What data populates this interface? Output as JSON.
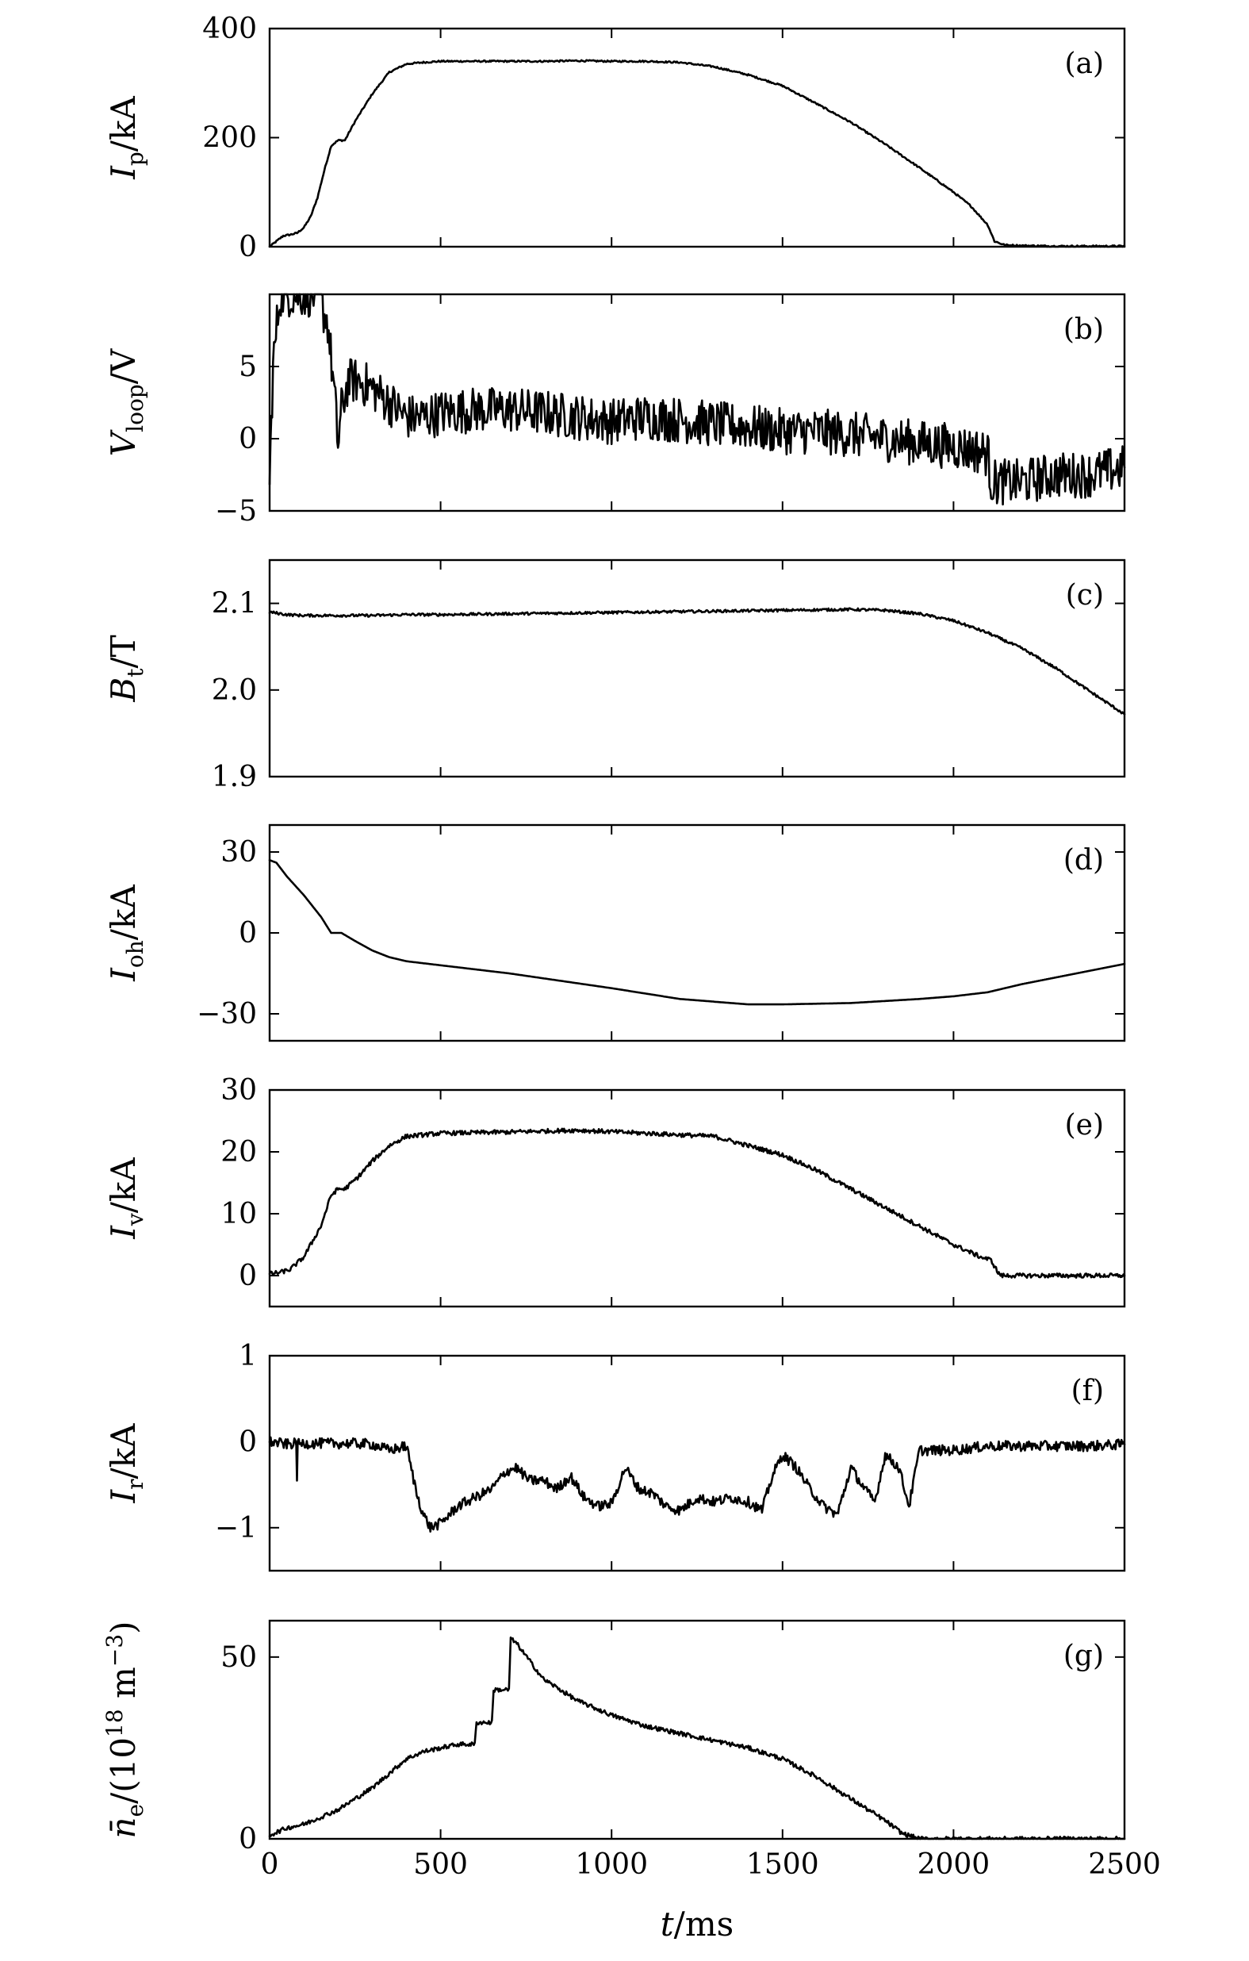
{
  "chart_data": [
    {
      "type": "line",
      "panel_tag": "(a)",
      "ylabel": {
        "symbol": "I",
        "sub": "p",
        "unit": "/kA"
      },
      "xlim": [
        0,
        2500
      ],
      "ylim": [
        0,
        400
      ],
      "yticks": [
        0,
        200,
        400
      ],
      "yticklabels": [
        "0",
        "200",
        "400"
      ],
      "x": [
        0,
        20,
        40,
        60,
        80,
        100,
        120,
        140,
        160,
        180,
        200,
        220,
        250,
        300,
        350,
        400,
        450,
        500,
        600,
        700,
        800,
        900,
        1000,
        1100,
        1200,
        1300,
        1400,
        1500,
        1600,
        1700,
        1800,
        1900,
        2000,
        2050,
        2100,
        2120,
        2150,
        2200,
        2300,
        2400,
        2500
      ],
      "y": [
        0,
        10,
        20,
        22,
        25,
        35,
        55,
        90,
        140,
        185,
        195,
        195,
        230,
        280,
        320,
        335,
        338,
        340,
        340,
        340,
        340,
        341,
        340,
        340,
        338,
        330,
        315,
        295,
        262,
        228,
        188,
        145,
        100,
        75,
        40,
        10,
        3,
        2,
        1,
        1,
        1
      ],
      "noise": 1.5
    },
    {
      "type": "line",
      "panel_tag": "(b)",
      "ylabel": {
        "symbol": "V",
        "sub": "loop",
        "unit": "/V"
      },
      "xlim": [
        0,
        2500
      ],
      "ylim": [
        -5,
        10
      ],
      "yticks": [
        -5,
        0,
        5
      ],
      "yticklabels": [
        "−5",
        "0",
        "5"
      ],
      "x": [
        0,
        10,
        30,
        60,
        100,
        140,
        170,
        190,
        200,
        210,
        230,
        260,
        300,
        350,
        400,
        450,
        500,
        600,
        700,
        800,
        900,
        1000,
        1100,
        1200,
        1300,
        1400,
        1500,
        1600,
        1700,
        1800,
        1900,
        2000,
        2100,
        2110,
        2150,
        2200,
        2300,
        2400,
        2500
      ],
      "y": [
        -3,
        5,
        10,
        10,
        10,
        10,
        8,
        3,
        -0.5,
        2,
        4,
        4,
        3.5,
        2.5,
        1.5,
        1.5,
        1.8,
        2,
        2,
        1.8,
        1.5,
        1.2,
        1.5,
        1.3,
        1,
        0.8,
        0.5,
        0.5,
        0.3,
        0,
        -0.3,
        -0.5,
        -1,
        -3,
        -3,
        -3,
        -2.5,
        -2.5,
        -2
      ],
      "noise": 1.6
    },
    {
      "type": "line",
      "panel_tag": "(c)",
      "ylabel": {
        "symbol": "B",
        "sub": "t",
        "unit": "/T"
      },
      "xlim": [
        0,
        2500
      ],
      "ylim": [
        1.9,
        2.15
      ],
      "yticks": [
        1.9,
        2.0,
        2.1
      ],
      "yticklabels": [
        "1.9",
        "2.0",
        "2.1"
      ],
      "x": [
        0,
        50,
        100,
        200,
        300,
        400,
        500,
        700,
        900,
        1100,
        1300,
        1500,
        1700,
        1800,
        1900,
        2000,
        2100,
        2200,
        2300,
        2400,
        2500
      ],
      "y": [
        2.09,
        2.087,
        2.086,
        2.086,
        2.086,
        2.087,
        2.087,
        2.088,
        2.089,
        2.09,
        2.091,
        2.092,
        2.093,
        2.092,
        2.088,
        2.08,
        2.066,
        2.048,
        2.025,
        1.998,
        1.972
      ],
      "noise": 0.0015
    },
    {
      "type": "line",
      "panel_tag": "(d)",
      "ylabel": {
        "symbol": "I",
        "sub": "oh",
        "unit": "/kA"
      },
      "xlim": [
        0,
        2500
      ],
      "ylim": [
        -40,
        40
      ],
      "yticks": [
        -30,
        0,
        30
      ],
      "yticklabels": [
        "−30",
        "0",
        "30"
      ],
      "x": [
        0,
        20,
        50,
        100,
        150,
        180,
        210,
        250,
        300,
        350,
        400,
        500,
        700,
        1000,
        1200,
        1400,
        1500,
        1700,
        1900,
        2000,
        2100,
        2200,
        2300,
        2400,
        2500
      ],
      "y": [
        27,
        26,
        21,
        14,
        6,
        0,
        0,
        -3,
        -6.5,
        -9,
        -10.5,
        -12,
        -15,
        -20.5,
        -24.5,
        -26.5,
        -26.5,
        -26,
        -24.5,
        -23.5,
        -22,
        -19,
        -16.5,
        -14,
        -11.5
      ],
      "noise": 0
    },
    {
      "type": "line",
      "panel_tag": "(e)",
      "ylabel": {
        "symbol": "I",
        "sub": "v",
        "unit": "/kA"
      },
      "xlim": [
        0,
        2500
      ],
      "ylim": [
        -5,
        30
      ],
      "yticks": [
        0,
        10,
        20,
        30
      ],
      "yticklabels": [
        "0",
        "10",
        "20",
        "30"
      ],
      "x": [
        0,
        30,
        60,
        100,
        150,
        180,
        200,
        220,
        260,
        300,
        350,
        400,
        500,
        700,
        900,
        1100,
        1300,
        1400,
        1500,
        1600,
        1700,
        1800,
        1900,
        2000,
        2080,
        2110,
        2130,
        2140,
        2200,
        2300,
        2400,
        2500
      ],
      "y": [
        0.3,
        0.5,
        1,
        3,
        8,
        13,
        14,
        14,
        16,
        18.5,
        21,
        22.5,
        23,
        23.2,
        23.5,
        23,
        22.5,
        21,
        19.5,
        17,
        14,
        11,
        8,
        5,
        3,
        2.5,
        0.5,
        0,
        0,
        0,
        0,
        0
      ],
      "noise": 0.35
    },
    {
      "type": "line",
      "panel_tag": "(f)",
      "ylabel": {
        "symbol": "I",
        "sub": "r",
        "unit": "/kA"
      },
      "xlim": [
        0,
        2500
      ],
      "ylim": [
        -1.5,
        1
      ],
      "yticks": [
        -1,
        0,
        1
      ],
      "yticklabels": [
        "−1",
        "0",
        "1"
      ],
      "x": [
        0,
        50,
        78,
        80,
        82,
        100,
        150,
        200,
        250,
        300,
        350,
        400,
        430,
        450,
        470,
        500,
        550,
        600,
        650,
        690,
        720,
        760,
        800,
        840,
        880,
        920,
        960,
        1000,
        1040,
        1080,
        1120,
        1160,
        1200,
        1250,
        1300,
        1350,
        1400,
        1440,
        1470,
        1500,
        1540,
        1580,
        1620,
        1660,
        1700,
        1740,
        1770,
        1800,
        1840,
        1870,
        1900,
        1950,
        2000,
        2100,
        2200,
        2300,
        2400,
        2500
      ],
      "y": [
        0,
        -0.03,
        -0.02,
        -0.4,
        -0.03,
        -0.02,
        -0.02,
        -0.02,
        -0.02,
        -0.03,
        -0.1,
        -0.05,
        -0.6,
        -0.85,
        -1.0,
        -0.95,
        -0.75,
        -0.65,
        -0.55,
        -0.35,
        -0.3,
        -0.45,
        -0.45,
        -0.55,
        -0.4,
        -0.65,
        -0.75,
        -0.72,
        -0.3,
        -0.55,
        -0.6,
        -0.75,
        -0.8,
        -0.65,
        -0.7,
        -0.65,
        -0.7,
        -0.8,
        -0.4,
        -0.15,
        -0.3,
        -0.55,
        -0.75,
        -0.85,
        -0.3,
        -0.55,
        -0.7,
        -0.15,
        -0.3,
        -0.75,
        -0.1,
        -0.1,
        -0.1,
        -0.05,
        -0.05,
        -0.05,
        -0.05,
        -0.03
      ],
      "noise": 0.06
    },
    {
      "type": "line",
      "panel_tag": "(g)",
      "ylabel": {
        "symbol": "n",
        "sub": "e",
        "unit": "/(10",
        "sup": "18",
        "tail": " m",
        "sup2": "−3",
        "close": ")"
      },
      "xlim": [
        0,
        2500
      ],
      "ylim": [
        0,
        60
      ],
      "yticks": [
        0,
        50
      ],
      "yticklabels": [
        "0",
        "50"
      ],
      "xticks": [
        0,
        500,
        1000,
        1500,
        2000,
        2500
      ],
      "xticklabels": [
        "0",
        "500",
        "1000",
        "1500",
        "2000",
        "2500"
      ],
      "xlabel": {
        "symbol": "t",
        "unit": "/ms"
      },
      "x": [
        0,
        50,
        100,
        200,
        300,
        400,
        450,
        500,
        550,
        600,
        605,
        650,
        655,
        700,
        705,
        720,
        800,
        900,
        1000,
        1100,
        1200,
        1300,
        1400,
        1500,
        1600,
        1700,
        1800,
        1850,
        1900,
        1910,
        2000,
        2500
      ],
      "y": [
        1,
        3,
        4,
        8,
        14,
        22,
        24,
        25,
        26,
        26,
        32,
        32,
        41,
        41,
        55,
        54,
        44,
        38,
        34,
        31,
        29,
        27,
        25,
        22,
        17,
        11,
        5,
        1.5,
        0,
        0,
        0,
        0
      ],
      "noise": 0.6
    }
  ]
}
